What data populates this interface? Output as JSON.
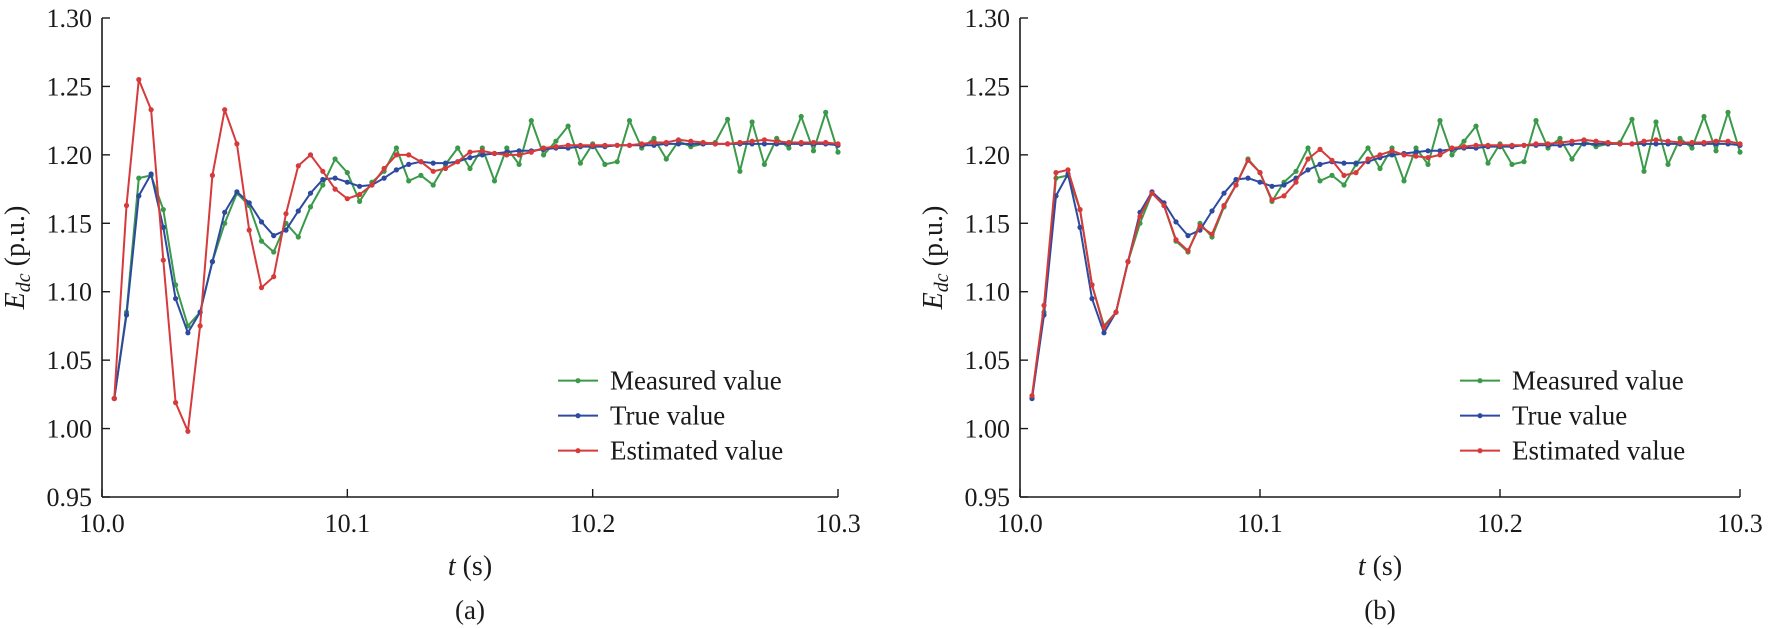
{
  "figure": {
    "panel_labels": [
      "(a)",
      "(b)"
    ]
  },
  "chart_data": [
    {
      "type": "line",
      "panel": "(a)",
      "xlabel": "t (s)",
      "ylabel": "E_dc (p.u.)",
      "xlim": [
        10.0,
        10.3
      ],
      "ylim": [
        0.95,
        1.3
      ],
      "xticks": [
        "10.0",
        "10.1",
        "10.2",
        "10.3"
      ],
      "yticks": [
        "0.95",
        "1.00",
        "1.05",
        "1.10",
        "1.15",
        "1.20",
        "1.25",
        "1.30"
      ],
      "grid": false,
      "legend_position": "bottom-right",
      "x": [
        10.005,
        10.01,
        10.015,
        10.02,
        10.025,
        10.03,
        10.035,
        10.04,
        10.045,
        10.05,
        10.055,
        10.06,
        10.065,
        10.07,
        10.075,
        10.08,
        10.085,
        10.09,
        10.095,
        10.1,
        10.105,
        10.11,
        10.115,
        10.12,
        10.125,
        10.13,
        10.135,
        10.14,
        10.145,
        10.15,
        10.155,
        10.16,
        10.165,
        10.17,
        10.175,
        10.18,
        10.185,
        10.19,
        10.195,
        10.2,
        10.205,
        10.21,
        10.215,
        10.22,
        10.225,
        10.23,
        10.235,
        10.24,
        10.245,
        10.25,
        10.255,
        10.26,
        10.265,
        10.27,
        10.275,
        10.28,
        10.285,
        10.29,
        10.295,
        10.3
      ],
      "series": [
        {
          "name": "Measured value",
          "color": "#3a9a4a",
          "values": [
            1.022,
            1.085,
            1.183,
            1.185,
            1.16,
            1.105,
            1.075,
            1.085,
            1.122,
            1.15,
            1.172,
            1.163,
            1.137,
            1.129,
            1.15,
            1.14,
            1.162,
            1.178,
            1.197,
            1.187,
            1.166,
            1.18,
            1.188,
            1.205,
            1.181,
            1.185,
            1.178,
            1.193,
            1.205,
            1.19,
            1.205,
            1.181,
            1.205,
            1.193,
            1.225,
            1.2,
            1.21,
            1.221,
            1.194,
            1.208,
            1.193,
            1.195,
            1.225,
            1.205,
            1.212,
            1.197,
            1.21,
            1.206,
            1.208,
            1.209,
            1.226,
            1.188,
            1.224,
            1.193,
            1.212,
            1.205,
            1.228,
            1.203,
            1.231,
            1.202
          ]
        },
        {
          "name": "True value",
          "color": "#2e4aa0",
          "values": [
            1.022,
            1.083,
            1.17,
            1.186,
            1.147,
            1.095,
            1.07,
            1.085,
            1.122,
            1.158,
            1.173,
            1.165,
            1.151,
            1.141,
            1.145,
            1.159,
            1.172,
            1.182,
            1.183,
            1.18,
            1.177,
            1.178,
            1.183,
            1.189,
            1.193,
            1.195,
            1.194,
            1.194,
            1.195,
            1.198,
            1.2,
            1.201,
            1.202,
            1.203,
            1.203,
            1.204,
            1.205,
            1.205,
            1.206,
            1.206,
            1.206,
            1.207,
            1.207,
            1.207,
            1.207,
            1.208,
            1.208,
            1.208,
            1.208,
            1.208,
            1.208,
            1.208,
            1.208,
            1.208,
            1.208,
            1.208,
            1.208,
            1.208,
            1.208,
            1.207
          ]
        },
        {
          "name": "Estimated value",
          "color": "#d63a3a",
          "values": [
            1.022,
            1.163,
            1.255,
            1.233,
            1.123,
            1.019,
            0.998,
            1.075,
            1.185,
            1.233,
            1.208,
            1.145,
            1.103,
            1.111,
            1.157,
            1.192,
            1.2,
            1.188,
            1.175,
            1.168,
            1.171,
            1.178,
            1.19,
            1.2,
            1.2,
            1.195,
            1.188,
            1.19,
            1.195,
            1.202,
            1.203,
            1.201,
            1.2,
            1.2,
            1.202,
            1.205,
            1.206,
            1.207,
            1.207,
            1.207,
            1.207,
            1.207,
            1.207,
            1.208,
            1.209,
            1.209,
            1.211,
            1.21,
            1.209,
            1.208,
            1.208,
            1.209,
            1.21,
            1.211,
            1.21,
            1.209,
            1.209,
            1.209,
            1.209,
            1.208
          ]
        }
      ]
    },
    {
      "type": "line",
      "panel": "(b)",
      "xlabel": "t (s)",
      "ylabel": "E_dc (p.u.)",
      "xlim": [
        10.0,
        10.3
      ],
      "ylim": [
        0.95,
        1.3
      ],
      "xticks": [
        "10.0",
        "10.1",
        "10.2",
        "10.3"
      ],
      "yticks": [
        "0.95",
        "1.00",
        "1.05",
        "1.10",
        "1.15",
        "1.20",
        "1.25",
        "1.30"
      ],
      "grid": false,
      "legend_position": "bottom-right",
      "x": [
        10.005,
        10.01,
        10.015,
        10.02,
        10.025,
        10.03,
        10.035,
        10.04,
        10.045,
        10.05,
        10.055,
        10.06,
        10.065,
        10.07,
        10.075,
        10.08,
        10.085,
        10.09,
        10.095,
        10.1,
        10.105,
        10.11,
        10.115,
        10.12,
        10.125,
        10.13,
        10.135,
        10.14,
        10.145,
        10.15,
        10.155,
        10.16,
        10.165,
        10.17,
        10.175,
        10.18,
        10.185,
        10.19,
        10.195,
        10.2,
        10.205,
        10.21,
        10.215,
        10.22,
        10.225,
        10.23,
        10.235,
        10.24,
        10.245,
        10.25,
        10.255,
        10.26,
        10.265,
        10.27,
        10.275,
        10.28,
        10.285,
        10.29,
        10.295,
        10.3
      ],
      "series": [
        {
          "name": "Measured value",
          "color": "#3a9a4a",
          "values": [
            1.022,
            1.085,
            1.183,
            1.185,
            1.16,
            1.105,
            1.075,
            1.085,
            1.122,
            1.15,
            1.172,
            1.163,
            1.137,
            1.129,
            1.15,
            1.14,
            1.162,
            1.178,
            1.197,
            1.187,
            1.166,
            1.18,
            1.188,
            1.205,
            1.181,
            1.185,
            1.178,
            1.193,
            1.205,
            1.19,
            1.205,
            1.181,
            1.205,
            1.193,
            1.225,
            1.2,
            1.21,
            1.221,
            1.194,
            1.208,
            1.193,
            1.195,
            1.225,
            1.205,
            1.212,
            1.197,
            1.21,
            1.206,
            1.208,
            1.209,
            1.226,
            1.188,
            1.224,
            1.193,
            1.212,
            1.205,
            1.228,
            1.203,
            1.231,
            1.202
          ]
        },
        {
          "name": "True value",
          "color": "#2e4aa0",
          "values": [
            1.022,
            1.083,
            1.17,
            1.186,
            1.147,
            1.095,
            1.07,
            1.085,
            1.122,
            1.158,
            1.173,
            1.165,
            1.151,
            1.141,
            1.145,
            1.159,
            1.172,
            1.182,
            1.183,
            1.18,
            1.177,
            1.178,
            1.183,
            1.189,
            1.193,
            1.195,
            1.194,
            1.194,
            1.195,
            1.198,
            1.2,
            1.201,
            1.202,
            1.203,
            1.203,
            1.204,
            1.205,
            1.205,
            1.206,
            1.206,
            1.206,
            1.207,
            1.207,
            1.207,
            1.207,
            1.208,
            1.208,
            1.208,
            1.208,
            1.208,
            1.208,
            1.208,
            1.208,
            1.208,
            1.208,
            1.208,
            1.208,
            1.208,
            1.208,
            1.207
          ]
        },
        {
          "name": "Estimated value",
          "color": "#d63a3a",
          "values": [
            1.024,
            1.09,
            1.187,
            1.189,
            1.16,
            1.105,
            1.074,
            1.085,
            1.122,
            1.155,
            1.172,
            1.163,
            1.138,
            1.13,
            1.148,
            1.142,
            1.163,
            1.178,
            1.196,
            1.187,
            1.167,
            1.17,
            1.18,
            1.197,
            1.204,
            1.196,
            1.185,
            1.187,
            1.197,
            1.2,
            1.203,
            1.2,
            1.199,
            1.198,
            1.2,
            1.205,
            1.206,
            1.207,
            1.207,
            1.207,
            1.207,
            1.207,
            1.208,
            1.208,
            1.209,
            1.21,
            1.211,
            1.21,
            1.209,
            1.208,
            1.208,
            1.21,
            1.211,
            1.21,
            1.209,
            1.209,
            1.209,
            1.21,
            1.21,
            1.208
          ]
        }
      ]
    }
  ]
}
